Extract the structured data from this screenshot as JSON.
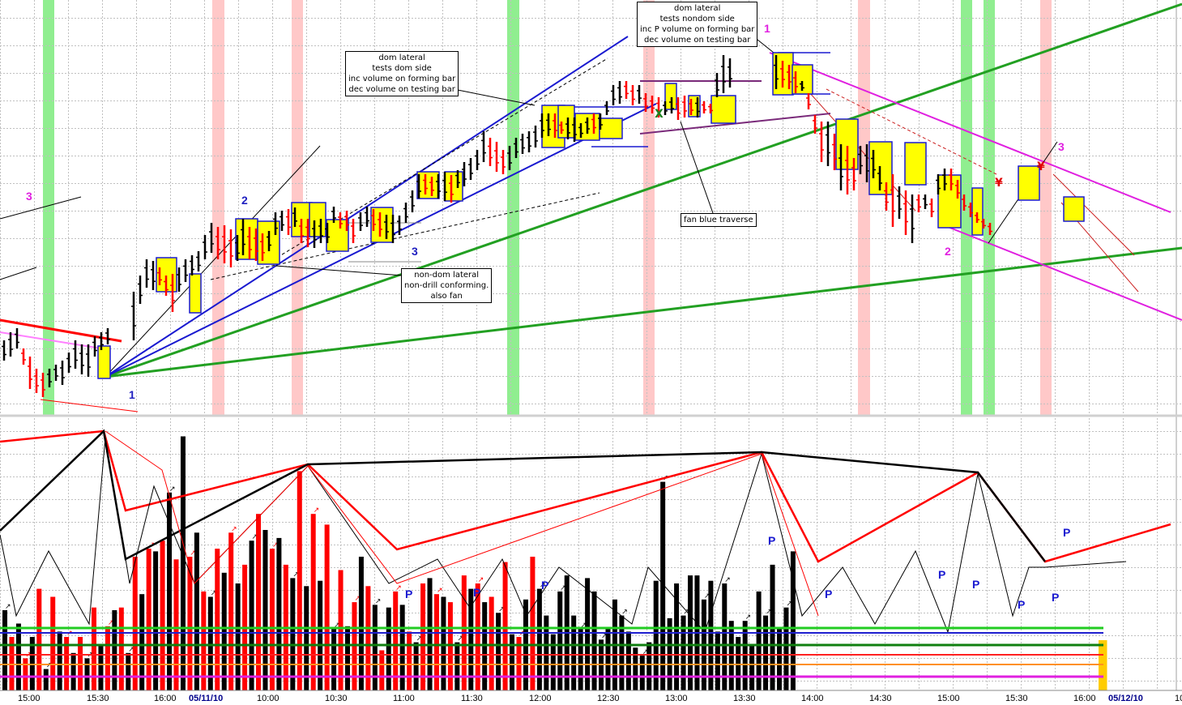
{
  "chart_data": {
    "type": "bar",
    "description_free": true,
    "x_tick_labels": [
      "15:00",
      "15:30",
      "16:00",
      "05/11/10",
      "10:00",
      "10:30",
      "11:00",
      "11:30",
      "12:00",
      "12:30",
      "13:00",
      "13:30",
      "14:00",
      "14:30",
      "15:00",
      "15:30",
      "16:00",
      "05/12/10",
      "10"
    ],
    "upper_panel": {
      "kind": "ohlc_price",
      "annotations": [
        {
          "id": "a1",
          "lines": [
            "dom lateral",
            "tests dom side",
            "inc volume on forming bar",
            "dec volume on testing bar"
          ]
        },
        {
          "id": "a2",
          "lines": [
            "dom lateral",
            "tests nondom side",
            "inc P volume on forming bar",
            "dec volume on testing bar"
          ]
        },
        {
          "id": "a3",
          "lines": [
            "fan blue traverse"
          ]
        },
        {
          "id": "a4",
          "lines": [
            "non-dom lateral",
            "non-drill conforming.",
            "also fan"
          ]
        }
      ],
      "point_labels": [
        {
          "text": "3",
          "color": "#e020e0"
        },
        {
          "text": "1",
          "color": "#2020c0"
        },
        {
          "text": "2",
          "color": "#2020c0"
        },
        {
          "text": "3",
          "color": "#2020c0"
        },
        {
          "text": "1",
          "color": "#e020e0"
        },
        {
          "text": "2",
          "color": "#e020e0"
        },
        {
          "text": "3",
          "color": "#e020e0"
        }
      ],
      "glyphs": [
        {
          "text": "X",
          "color": "#208020"
        },
        {
          "text": "¥",
          "color": "#e00000"
        },
        {
          "text": "¥",
          "color": "#e00000"
        }
      ]
    },
    "lower_panel": {
      "kind": "volume",
      "series": [
        {
          "color": "#000000",
          "values": [
            30,
            25,
            20,
            8,
            22,
            14,
            12,
            17,
            30,
            14,
            36,
            52,
            74,
            95,
            59,
            35,
            44,
            40,
            56,
            60,
            57,
            42,
            39,
            41,
            23,
            24,
            50,
            32,
            31,
            32,
            18,
            42,
            35,
            18,
            38,
            33,
            29,
            21,
            34,
            38,
            28,
            21,
            37,
            43,
            28,
            23,
            42,
            37,
            19,
            23,
            34,
            28,
            22,
            16,
            13,
            18,
            41,
            78,
            27,
            40,
            28,
            43,
            43,
            34,
            41,
            22,
            40,
            26,
            20,
            26,
            17,
            37,
            28,
            47,
            23,
            31,
            52
          ]
        },
        {
          "color": "#ff0000",
          "values": [
            20,
            12,
            38,
            35,
            20,
            20,
            31,
            24,
            31,
            50,
            53,
            56,
            49,
            50,
            37,
            53,
            59,
            47,
            66,
            53,
            47,
            82,
            66,
            62,
            45,
            33,
            39,
            15,
            37,
            22,
            40,
            36,
            33,
            43,
            40,
            35,
            48,
            20,
            50
          ]
        }
      ],
      "p_labels": [
        "P",
        "P",
        "P",
        "P",
        "P",
        "P",
        "P",
        "P",
        "P",
        "P"
      ]
    }
  },
  "colors": {
    "black": "#000000",
    "red": "#ff0000",
    "blue": "#1a1ad0",
    "green": "#22a022",
    "magenta": "#e020e0",
    "yellow": "#ffff00",
    "pink_band": "#ffc8c8",
    "green_band": "#90ee90",
    "grid": "#c0c0c0"
  }
}
